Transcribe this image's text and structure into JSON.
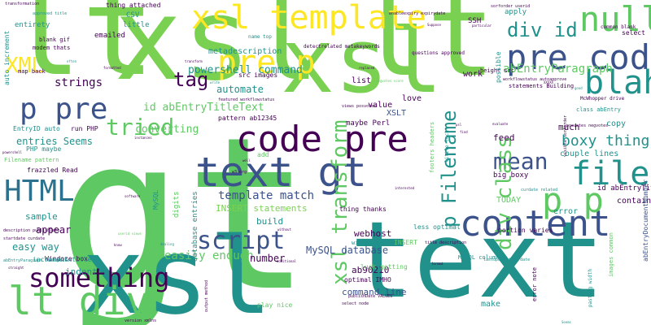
{
  "palette": {
    "purple": "#440154",
    "indigo": "#3b528b",
    "teal": "#21918c",
    "green": "#5ec962",
    "lime": "#7ad151",
    "yellow": "#fde725",
    "bluegreen": "#2c728e"
  },
  "words": [
    {
      "text": "gt",
      "size": 260,
      "color": "#5ec962"
    },
    {
      "text": "lt",
      "size": 150,
      "color": "#7ad151"
    },
    {
      "text": "xsl",
      "size": 140,
      "color": "#7ad151"
    },
    {
      "text": "lt",
      "size": 140,
      "color": "#7ad151"
    },
    {
      "text": "xsl",
      "size": 130,
      "color": "#21918c"
    },
    {
      "text": "text",
      "size": 130,
      "color": "#21918c"
    },
    {
      "text": "xsl",
      "size": 110,
      "color": "#7ad151"
    },
    {
      "text": "xsl template",
      "size": 40,
      "color": "#fde725"
    },
    {
      "text": "null",
      "size": 42,
      "color": "#5ec962"
    },
    {
      "text": "pre code",
      "size": 42,
      "color": "#3b528b"
    },
    {
      "text": "pre p",
      "size": 40,
      "color": "#fde725"
    },
    {
      "text": "blah",
      "size": 40,
      "color": "#21918c"
    },
    {
      "text": "code pre",
      "size": 44,
      "color": "#440154"
    },
    {
      "text": "text gt",
      "size": 50,
      "color": "#3b528b"
    },
    {
      "text": "content",
      "size": 44,
      "color": "#3b528b"
    },
    {
      "text": "lt div",
      "size": 48,
      "color": "#5ec962"
    },
    {
      "text": "HTML",
      "size": 36,
      "color": "#2c728e"
    },
    {
      "text": "p pre",
      "size": 36,
      "color": "#3b528b"
    },
    {
      "text": "p p",
      "size": 42,
      "color": "#5ec962"
    },
    {
      "text": "file",
      "size": 40,
      "color": "#21918c"
    },
    {
      "text": "something",
      "size": 32,
      "color": "#440154"
    },
    {
      "text": "script",
      "size": 30,
      "color": "#3b528b"
    },
    {
      "text": "mean",
      "size": 28,
      "color": "#3b528b"
    },
    {
      "text": "tried",
      "size": 28,
      "color": "#5ec962"
    },
    {
      "text": "XML",
      "size": 26,
      "color": "#fde725"
    },
    {
      "text": "tag",
      "size": 24,
      "color": "#440154"
    },
    {
      "text": "div id",
      "size": 24,
      "color": "#21918c"
    },
    {
      "text": "boxy thing",
      "size": 18,
      "color": "#21918c"
    },
    {
      "text": "xsl transform",
      "size": 26,
      "color": "#5ec962"
    },
    {
      "text": "div class",
      "size": 26,
      "color": "#5ec962"
    },
    {
      "text": "p Filename",
      "size": 24,
      "color": "#21918c"
    },
    {
      "text": "abEntryParagraph",
      "size": 14,
      "color": "#5ec962"
    },
    {
      "text": "strings",
      "size": 14,
      "color": "#440154"
    },
    {
      "text": "template match",
      "size": 14,
      "color": "#3b528b"
    },
    {
      "text": "easily enough",
      "size": 14,
      "color": "#5ec962"
    },
    {
      "text": "powershell command",
      "size": 13,
      "color": "#21918c"
    },
    {
      "text": "id abEntryTitleText",
      "size": 13,
      "color": "#5ec962"
    },
    {
      "text": "entries Seems",
      "size": 12,
      "color": "#21918c"
    },
    {
      "text": "automate",
      "size": 12,
      "color": "#21918c"
    },
    {
      "text": "metadescription",
      "size": 10,
      "color": "#21918c"
    },
    {
      "text": "converting",
      "size": 13,
      "color": "#5ec962"
    },
    {
      "text": "INSERT statements",
      "size": 11,
      "color": "#7ad151"
    },
    {
      "text": "MySQL database",
      "size": 12,
      "color": "#3b528b"
    },
    {
      "text": "number",
      "size": 12,
      "color": "#440154"
    },
    {
      "text": "appear",
      "size": 12,
      "color": "#440154"
    },
    {
      "text": "easy way",
      "size": 12,
      "color": "#21918c"
    },
    {
      "text": "sample",
      "size": 11,
      "color": "#21918c"
    },
    {
      "text": "indent",
      "size": 11,
      "color": "#21918c"
    },
    {
      "text": "command line",
      "size": 11,
      "color": "#3b528b"
    },
    {
      "text": "ab90210",
      "size": 11,
      "color": "#440154"
    },
    {
      "text": "build",
      "size": 11,
      "color": "#21918c"
    },
    {
      "text": "webhost",
      "size": 11,
      "color": "#440154"
    },
    {
      "text": "feed",
      "size": 11,
      "color": "#440154"
    },
    {
      "text": "much",
      "size": 11,
      "color": "#440154"
    },
    {
      "text": "couple lines",
      "size": 10,
      "color": "#21918c"
    },
    {
      "text": "copy",
      "size": 10,
      "color": "#21918c"
    },
    {
      "text": "contain",
      "size": 10,
      "color": "#440154"
    },
    {
      "text": "error",
      "size": 10,
      "color": "#21918c"
    },
    {
      "text": "TODAY",
      "size": 10,
      "color": "#5ec962"
    },
    {
      "text": "big boxy",
      "size": 9,
      "color": "#440154"
    },
    {
      "text": "id abEntryTitle",
      "size": 9,
      "color": "#440154"
    },
    {
      "text": "make",
      "size": 10,
      "color": "#21918c"
    },
    {
      "text": "love",
      "size": 10,
      "color": "#440154"
    },
    {
      "text": "work",
      "size": 10,
      "color": "#440154"
    },
    {
      "text": "list",
      "size": 10,
      "color": "#440154"
    },
    {
      "text": "value",
      "size": 10,
      "color": "#440154"
    },
    {
      "text": "XSLT",
      "size": 10,
      "color": "#3b528b"
    },
    {
      "text": "maybe Perl",
      "size": 9,
      "color": "#440154"
    },
    {
      "text": "SSH",
      "size": 9,
      "color": "#440154"
    },
    {
      "text": "CSV",
      "size": 9,
      "color": "#21918c"
    },
    {
      "text": "little",
      "size": 9,
      "color": "#21918c"
    },
    {
      "text": "emailed",
      "size": 9,
      "color": "#440154"
    },
    {
      "text": "apply",
      "size": 9,
      "color": "#21918c"
    },
    {
      "text": "select",
      "size": 8,
      "color": "#440154"
    },
    {
      "text": "src images",
      "size": 8,
      "color": "#440154"
    },
    {
      "text": "height src",
      "size": 7,
      "color": "#440154"
    },
    {
      "text": "entirety",
      "size": 9,
      "color": "#21918c"
    },
    {
      "text": "EntryID auto",
      "size": 8,
      "color": "#21918c"
    },
    {
      "text": "PHP maybe",
      "size": 8,
      "color": "#21918c"
    },
    {
      "text": "run PHP",
      "size": 8,
      "color": "#440154"
    },
    {
      "text": "pattern ab12345",
      "size": 8,
      "color": "#440154"
    },
    {
      "text": "frazzled Read",
      "size": 8,
      "color": "#440154"
    },
    {
      "text": "Filename pattern",
      "size": 7,
      "color": "#5ec962"
    },
    {
      "text": "blank gif",
      "size": 7,
      "color": "#440154"
    },
    {
      "text": "modem thats",
      "size": 7,
      "color": "#440154"
    },
    {
      "text": "map back",
      "size": 7,
      "color": "#440154"
    },
    {
      "text": "thing attached",
      "size": 8,
      "color": "#440154"
    },
    {
      "text": "statements Building",
      "size": 7,
      "color": "#440154"
    },
    {
      "text": "class abEntry",
      "size": 7,
      "color": "#21918c"
    },
    {
      "text": "Windoze box",
      "size": 8,
      "color": "#440154"
    },
    {
      "text": "increment title",
      "size": 8,
      "color": "#21918c"
    },
    {
      "text": "luck getting",
      "size": 8,
      "color": "#5ec962"
    },
    {
      "text": "play nice",
      "size": 8,
      "color": "#5ec962"
    },
    {
      "text": "optimal IMHO",
      "size": 8,
      "color": "#440154"
    },
    {
      "text": "thing thanks",
      "size": 8,
      "color": "#440154"
    },
    {
      "text": "less optimal",
      "size": 8,
      "color": "#21918c"
    },
    {
      "text": "portion varies",
      "size": 8,
      "color": "#440154"
    },
    {
      "text": "width height",
      "size": 7,
      "color": "#21918c"
    },
    {
      "text": "INSERT",
      "size": 8,
      "color": "#5ec962"
    },
    {
      "text": "MySQL columns",
      "size": 7,
      "color": "#21918c"
    },
    {
      "text": "error note",
      "size": 7,
      "color": "#440154"
    },
    {
      "text": "images common",
      "size": 7,
      "color": "#5ec962"
    },
    {
      "text": "abEntryDocumentNumber",
      "size": 8,
      "color": "#3b528b"
    },
    {
      "text": "questions approved",
      "size": 6,
      "color": "#440154"
    },
    {
      "text": "detectrelated metakeywords",
      "size": 6,
      "color": "#440154"
    },
    {
      "text": "name top",
      "size": 6,
      "color": "#21918c"
    },
    {
      "text": "common blank",
      "size": 6,
      "color": "#440154"
    },
    {
      "text": "sorforder userid",
      "size": 5,
      "color": "#440154"
    },
    {
      "text": "enableexpiry expirydate",
      "size": 5,
      "color": "#440154"
    },
    {
      "text": "approved title",
      "size": 5,
      "color": "#21918c"
    },
    {
      "text": "transformation",
      "size": 5,
      "color": "#440154"
    },
    {
      "text": "curdate related",
      "size": 5,
      "color": "#21918c"
    },
    {
      "text": "workflowstatus autoapprove",
      "size": 5,
      "color": "#440154"
    },
    {
      "text": "McWhopper drive",
      "size": 6,
      "color": "#440154"
    },
    {
      "text": "startdate curdate",
      "size": 5,
      "color": "#440154"
    },
    {
      "text": "abEntryParagraph lastupdated",
      "size": 5,
      "color": "#21918c"
    },
    {
      "text": "description publishDate",
      "size": 5,
      "color": "#440154"
    },
    {
      "text": "publishDate VALUES",
      "size": 5,
      "color": "#440154"
    },
    {
      "text": "lastupdated curdate",
      "size": 5,
      "color": "#21918c"
    },
    {
      "text": "featured workflowstatus",
      "size": 5,
      "color": "#440154"
    },
    {
      "text": "views posvotes",
      "size": 5,
      "color": "#440154"
    },
    {
      "text": "posvotes negvotes",
      "size": 5,
      "color": "#440154"
    },
    {
      "text": "title description",
      "size": 5,
      "color": "#440154"
    },
    {
      "text": "select node",
      "size": 5,
      "color": "#440154"
    },
    {
      "text": "footers headers",
      "size": 7,
      "color": "#5ec962"
    },
    {
      "text": "little luck",
      "size": 6,
      "color": "#21918c"
    },
    {
      "text": "visible sortorder",
      "size": 5,
      "color": "#440154"
    },
    {
      "text": "pasting width",
      "size": 6,
      "color": "#21918c"
    },
    {
      "text": "digits",
      "size": 9,
      "color": "#5ec962"
    },
    {
      "text": "MySQL",
      "size": 8,
      "color": "#21918c"
    },
    {
      "text": "possible",
      "size": 8,
      "color": "#21918c"
    },
    {
      "text": "database entries",
      "size": 9,
      "color": "#21918c"
    },
    {
      "text": "auto increment",
      "size": 8,
      "color": "#21918c"
    },
    {
      "text": "version xmlns",
      "size": 5,
      "color": "#440154"
    },
    {
      "text": "output method",
      "size": 5,
      "color": "#440154"
    },
    {
      "text": "w3 org",
      "size": 5,
      "color": "#440154"
    },
    {
      "text": "add",
      "size": 8,
      "color": "#5ec962"
    },
    {
      "text": "often",
      "size": 4,
      "color": "#21918c"
    },
    {
      "text": "formatted",
      "size": 4,
      "color": "#440154"
    },
    {
      "text": "transform",
      "size": 4,
      "color": "#440154"
    },
    {
      "text": "write",
      "size": 4,
      "color": "#21918c"
    },
    {
      "text": "replaced",
      "size": 4,
      "color": "#440154"
    },
    {
      "text": "negvotes score",
      "size": 4,
      "color": "#5ec962"
    },
    {
      "text": "particular",
      "size": 4,
      "color": "#440154"
    },
    {
      "text": "Suppose",
      "size": 4,
      "color": "#440154"
    },
    {
      "text": "good",
      "size": 4,
      "color": "#21918c"
    },
    {
      "text": "XXXXX",
      "size": 4,
      "color": "#440154"
    },
    {
      "text": "powershell",
      "size": 4,
      "color": "#440154"
    },
    {
      "text": "instances",
      "size": 4,
      "color": "#440154"
    },
    {
      "text": "dealing",
      "size": 4,
      "color": "#21918c"
    },
    {
      "text": "know",
      "size": 4,
      "color": "#440154"
    },
    {
      "text": "software",
      "size": 4,
      "color": "#440154"
    },
    {
      "text": "without",
      "size": 4,
      "color": "#440154"
    },
    {
      "text": "additional",
      "size": 4,
      "color": "#440154"
    },
    {
      "text": "interested",
      "size": 4,
      "color": "#440154"
    },
    {
      "text": "formed",
      "size": 4,
      "color": "#440154"
    },
    {
      "text": "Seems",
      "size": 4,
      "color": "#21918c"
    },
    {
      "text": "straight",
      "size": 4,
      "color": "#440154"
    },
    {
      "text": "userid views",
      "size": 4,
      "color": "#5ec962"
    },
    {
      "text": "evaluate",
      "size": 4,
      "color": "#440154"
    },
    {
      "text": "find",
      "size": 4,
      "color": "#440154"
    },
    {
      "text": "psl",
      "size": 4,
      "color": "#440154"
    },
    {
      "text": "well",
      "size": 4,
      "color": "#440154"
    }
  ]
}
